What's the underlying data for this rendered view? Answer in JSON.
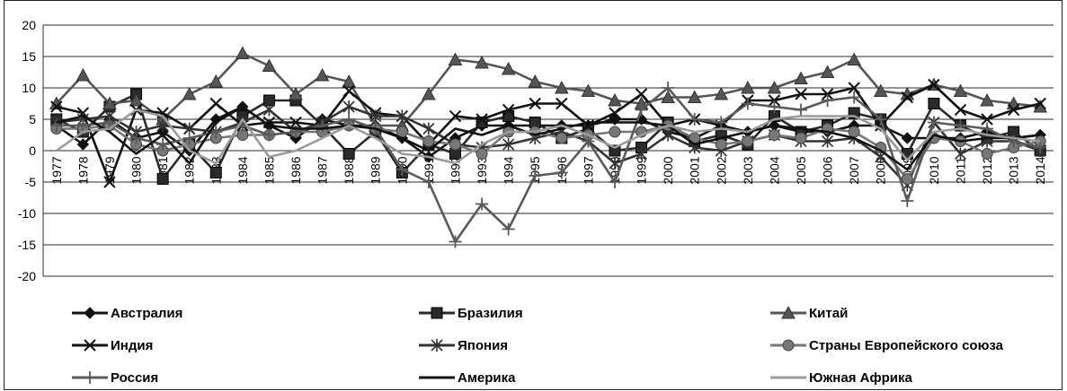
{
  "chart_data": {
    "type": "line",
    "title": "",
    "xlabel": "",
    "ylabel": "",
    "ylim": [
      -20,
      20
    ],
    "yticks": [
      20,
      15,
      10,
      5,
      0,
      -5,
      -10,
      -15,
      -20
    ],
    "grid": "horizontal",
    "legend_position": "bottom",
    "x": [
      "1977",
      "1978",
      "1979",
      "1980",
      "1981",
      "1982",
      "1983",
      "1984",
      "1985",
      "1986",
      "1987",
      "1988",
      "1989",
      "1990",
      "1991",
      "1992",
      "1993",
      "1994",
      "1995",
      "1996",
      "1997",
      "1998",
      "1999",
      "2000",
      "2001",
      "2002",
      "2003",
      "2004",
      "2005",
      "2006",
      "2007",
      "2008",
      "2009",
      "2010",
      "2011",
      "2012",
      "2013",
      "2014"
    ],
    "series": [
      {
        "name": "Австралия",
        "marker": "diamond",
        "color": "#111111",
        "values": [
          4,
          1,
          5,
          2,
          3,
          0,
          5,
          7,
          4,
          2,
          5,
          4,
          4,
          2,
          -1,
          2,
          4,
          4,
          4,
          4,
          4,
          5,
          5,
          3,
          2,
          4,
          3,
          4,
          3,
          3,
          4,
          4,
          2,
          2,
          2,
          3,
          2,
          2.5
        ]
      },
      {
        "name": "Бразилия",
        "marker": "square",
        "color": "#2a2a2a",
        "values": [
          5,
          3,
          7,
          9,
          -4.5,
          1,
          -3.5,
          5.5,
          8,
          8,
          4,
          -0.5,
          3,
          -3.5,
          1,
          -0.5,
          4.5,
          5.5,
          4.5,
          2,
          3.5,
          0,
          0.5,
          4.5,
          1.5,
          2.5,
          1,
          5.5,
          3,
          4,
          6,
          5,
          -0.5,
          7.5,
          4,
          2,
          3,
          0
        ]
      },
      {
        "name": "Китай",
        "marker": "triangle",
        "color": "#555555",
        "values": [
          7.5,
          12,
          7.5,
          8,
          5,
          9,
          11,
          15.5,
          13.5,
          9,
          12,
          11,
          4,
          4,
          9,
          14.5,
          14,
          13,
          11,
          10,
          9.5,
          8,
          7.5,
          8.5,
          8.5,
          9,
          10,
          10,
          11.5,
          12.5,
          14.5,
          9.5,
          9,
          10.5,
          9.5,
          8,
          7.5,
          7
        ]
      },
      {
        "name": "Индия",
        "marker": "x",
        "color": "#111111",
        "values": [
          7,
          6,
          -5,
          6.5,
          6,
          3.5,
          7.5,
          4,
          4.5,
          4.5,
          4,
          9.5,
          6,
          5.5,
          1,
          5.5,
          5,
          6.5,
          7.5,
          7.5,
          4,
          6,
          9,
          4,
          5,
          4,
          8,
          8,
          9,
          9,
          10,
          4,
          8.5,
          10.5,
          6.5,
          5,
          6.5,
          7.5
        ]
      },
      {
        "name": "Япония",
        "marker": "star",
        "color": "#333333",
        "values": [
          4.5,
          5,
          5.5,
          3,
          4,
          3.5,
          3,
          4.5,
          6.5,
          3,
          4.5,
          7,
          5.5,
          5.5,
          3.5,
          1,
          0.5,
          1,
          2,
          3,
          1.5,
          -2,
          -0.5,
          2.5,
          0.5,
          0,
          1.5,
          2.5,
          1.5,
          1.5,
          2,
          -1,
          -5.5,
          4.5,
          -0.5,
          1.5,
          1.5,
          0
        ]
      },
      {
        "name": "Страны Европейского союза",
        "marker": "circle",
        "color": "#777777",
        "values": [
          3.5,
          3.5,
          4,
          1,
          0,
          1,
          2,
          2.5,
          2.5,
          3,
          3,
          4,
          3.5,
          3,
          1.5,
          1,
          -0.5,
          3,
          3,
          2,
          2.5,
          3,
          3,
          4,
          2,
          1,
          1.5,
          2.5,
          2,
          3.5,
          3,
          0.5,
          -4.5,
          2,
          1.5,
          -0.5,
          0.5,
          1.5
        ]
      },
      {
        "name": "Россия",
        "marker": "plus",
        "color": "#5a5a5a",
        "values": [
          4,
          4,
          4.5,
          2,
          1,
          2,
          3,
          4,
          2.5,
          3,
          4,
          5,
          3.5,
          -3,
          -5,
          -14.5,
          -8.5,
          -12.5,
          -4,
          -3.5,
          1.5,
          -5,
          6.5,
          10,
          5,
          4.5,
          7.5,
          7,
          6.5,
          8,
          8.5,
          5,
          -8,
          4.5,
          4,
          3.5,
          1.5,
          0.5
        ]
      },
      {
        "name": "Америка",
        "marker": "none",
        "color": "#111111",
        "values": [
          4.5,
          5.5,
          3,
          -0.5,
          2.5,
          -2,
          4.5,
          7,
          4,
          3.5,
          3.5,
          4,
          3.5,
          2,
          0,
          3.5,
          2.5,
          4,
          2.5,
          3.5,
          4.5,
          4.5,
          4.5,
          4,
          1,
          2,
          3,
          4,
          3.5,
          3,
          2,
          0,
          -3,
          2.5,
          1.5,
          2,
          2,
          2.5
        ]
      },
      {
        "name": "Южная Африка",
        "marker": "none",
        "color": "#9a9a9a",
        "values": [
          0,
          3,
          3.5,
          6.5,
          5.5,
          0,
          -2,
          5,
          -1,
          0,
          2,
          4,
          2,
          -0.5,
          -1,
          -2,
          1,
          3,
          3,
          4,
          2.5,
          0.5,
          2.5,
          4,
          3,
          3.5,
          3,
          5,
          5.5,
          5.5,
          5.5,
          3.5,
          -1.5,
          3,
          3.5,
          2.5,
          2,
          1.5
        ]
      }
    ]
  },
  "legend": {
    "rows": [
      [
        "Австралия",
        "Бразилия",
        "Китай"
      ],
      [
        "Индия",
        "Япония",
        "Страны Европейского союза"
      ],
      [
        "Россия",
        "Америка",
        "Южная Африка"
      ]
    ]
  }
}
